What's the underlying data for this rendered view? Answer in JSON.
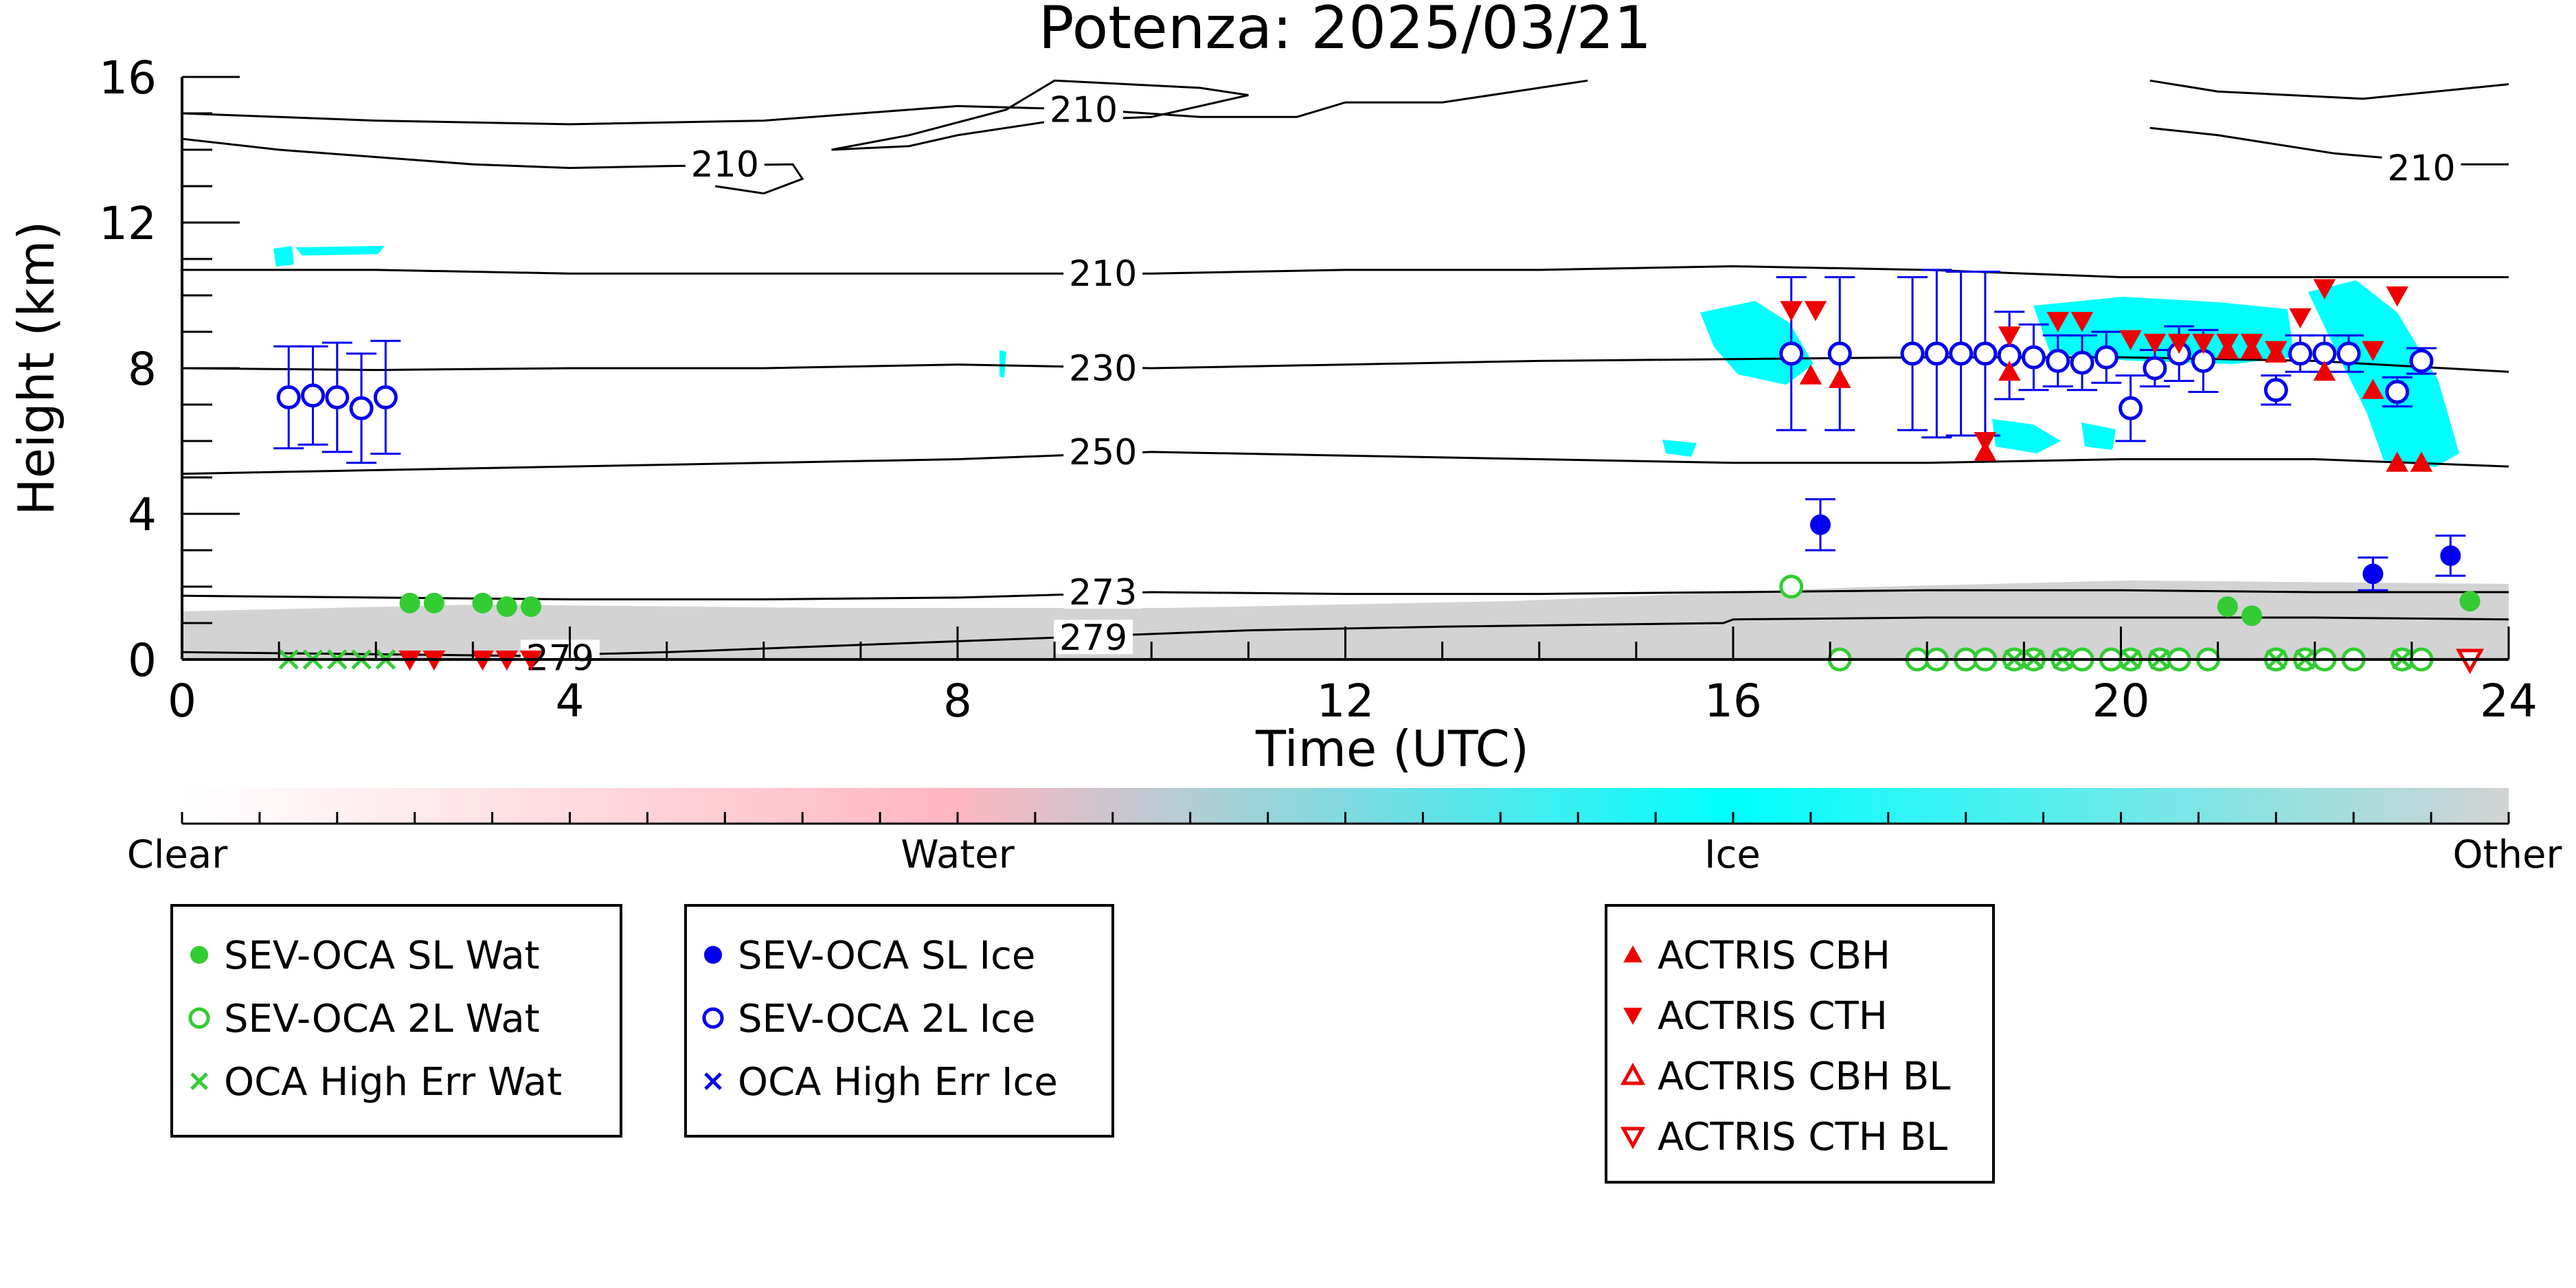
{
  "chart_data": {
    "type": "scatter",
    "title": "Potenza: 2025/03/21",
    "xlabel": "Time (UTC)",
    "ylabel": "Height (km)",
    "xlim": [
      0,
      24
    ],
    "ylim": [
      0,
      16
    ],
    "xticks": [
      "0",
      "4",
      "8",
      "12",
      "16",
      "20",
      "24"
    ],
    "yticks": [
      "0",
      "4",
      "8",
      "12",
      "16"
    ],
    "grid": false,
    "colorbar": {
      "labels": [
        "Clear",
        "Water",
        "Ice",
        "Other"
      ],
      "colors": [
        "#ffffff",
        "#ffb6c1",
        "#00ffff",
        "#d3d3d3"
      ]
    },
    "isotherm_labels": [
      {
        "text": "210",
        "x": 9.3,
        "y": 15.1
      },
      {
        "text": "210",
        "x": 5.6,
        "y": 13.6
      },
      {
        "text": "210",
        "x": 23.1,
        "y": 13.5
      },
      {
        "text": "210",
        "x": 9.5,
        "y": 10.6
      },
      {
        "text": "230",
        "x": 9.5,
        "y": 8.0
      },
      {
        "text": "250",
        "x": 9.5,
        "y": 5.7
      },
      {
        "text": "273",
        "x": 9.5,
        "y": 1.85
      },
      {
        "text": "279",
        "x": 9.4,
        "y": 0.6
      },
      {
        "text": "279",
        "x": 3.9,
        "y": 0.05
      }
    ],
    "contours": [
      {
        "name": "top-line",
        "points": [
          [
            0,
            15.0
          ],
          [
            1,
            14.9
          ],
          [
            2,
            14.8
          ],
          [
            4,
            14.7
          ],
          [
            6,
            14.8
          ],
          [
            8,
            15.2
          ],
          [
            9.4,
            15.1
          ],
          [
            10.5,
            14.9
          ],
          [
            11.5,
            14.9
          ],
          [
            12,
            15.3
          ],
          [
            13,
            15.3
          ],
          [
            14,
            15.7
          ],
          [
            14.5,
            15.9
          ]
        ]
      },
      {
        "name": "second-line",
        "points": [
          [
            0,
            14.3
          ],
          [
            1,
            14.0
          ],
          [
            2,
            13.8
          ],
          [
            3,
            13.6
          ],
          [
            4,
            13.5
          ],
          [
            5,
            13.55
          ],
          [
            6.3,
            13.6
          ],
          [
            6.4,
            13.2
          ],
          [
            6,
            12.8
          ],
          [
            5.5,
            13.0
          ]
        ]
      },
      {
        "name": "closed-loop",
        "points": [
          [
            6.7,
            14.0
          ],
          [
            7.5,
            14.4
          ],
          [
            8.5,
            15.1
          ],
          [
            9.0,
            15.9
          ],
          [
            10.5,
            15.7
          ],
          [
            11,
            15.5
          ],
          [
            10,
            14.9
          ],
          [
            9,
            14.8
          ],
          [
            8,
            14.4
          ],
          [
            7.5,
            14.1
          ],
          [
            6.7,
            14.0
          ]
        ]
      },
      {
        "name": "right-top",
        "points": [
          [
            20.3,
            15.9
          ],
          [
            21,
            15.6
          ],
          [
            22.5,
            15.4
          ],
          [
            24,
            15.8
          ]
        ]
      },
      {
        "name": "right-second",
        "points": [
          [
            20.3,
            14.6
          ],
          [
            21,
            14.4
          ],
          [
            22.2,
            13.9
          ],
          [
            23.5,
            13.6
          ],
          [
            24,
            13.6
          ]
        ]
      },
      {
        "name": "iso-210",
        "points": [
          [
            0,
            10.7
          ],
          [
            2,
            10.7
          ],
          [
            4,
            10.6
          ],
          [
            6,
            10.6
          ],
          [
            8,
            10.6
          ],
          [
            10,
            10.6
          ],
          [
            12,
            10.7
          ],
          [
            14,
            10.7
          ],
          [
            16,
            10.8
          ],
          [
            18,
            10.7
          ],
          [
            20,
            10.5
          ],
          [
            22,
            10.5
          ],
          [
            24,
            10.5
          ]
        ]
      },
      {
        "name": "iso-230",
        "points": [
          [
            0,
            8.0
          ],
          [
            2,
            7.95
          ],
          [
            4,
            8.0
          ],
          [
            6,
            8.0
          ],
          [
            8,
            8.1
          ],
          [
            10,
            8.0
          ],
          [
            12,
            8.1
          ],
          [
            14,
            8.2
          ],
          [
            16,
            8.25
          ],
          [
            18,
            8.3
          ],
          [
            20,
            8.3
          ],
          [
            22,
            8.2
          ],
          [
            24,
            7.9
          ]
        ]
      },
      {
        "name": "iso-250",
        "points": [
          [
            0,
            5.1
          ],
          [
            2,
            5.2
          ],
          [
            4,
            5.3
          ],
          [
            6,
            5.4
          ],
          [
            8,
            5.5
          ],
          [
            10,
            5.7
          ],
          [
            12,
            5.6
          ],
          [
            14,
            5.5
          ],
          [
            16,
            5.4
          ],
          [
            18,
            5.4
          ],
          [
            20,
            5.5
          ],
          [
            22,
            5.5
          ],
          [
            24,
            5.3
          ]
        ]
      },
      {
        "name": "iso-273",
        "points": [
          [
            0,
            1.75
          ],
          [
            2,
            1.7
          ],
          [
            4,
            1.65
          ],
          [
            6,
            1.65
          ],
          [
            8,
            1.7
          ],
          [
            10,
            1.85
          ],
          [
            12,
            1.8
          ],
          [
            14,
            1.8
          ],
          [
            16,
            1.85
          ],
          [
            18,
            1.9
          ],
          [
            20,
            1.9
          ],
          [
            22,
            1.85
          ],
          [
            24,
            1.85
          ]
        ]
      },
      {
        "name": "iso-279",
        "points": [
          [
            0,
            0.2
          ],
          [
            3.5,
            0.1
          ],
          [
            5,
            0.2
          ],
          [
            7,
            0.4
          ],
          [
            9,
            0.6
          ],
          [
            11,
            0.8
          ],
          [
            13,
            0.9
          ],
          [
            15.9,
            1.0
          ],
          [
            16,
            1.1
          ],
          [
            18,
            1.15
          ],
          [
            20,
            1.15
          ],
          [
            22,
            1.15
          ],
          [
            24,
            1.1
          ]
        ]
      }
    ],
    "series": [
      {
        "name": "SEV-OCA SL Wat",
        "color": "#33cc33",
        "marker": "filled-circle",
        "points": [
          [
            2.35,
            1.55
          ],
          [
            2.6,
            1.55
          ],
          [
            3.1,
            1.55
          ],
          [
            3.35,
            1.45
          ],
          [
            3.6,
            1.45
          ],
          [
            21.1,
            1.45
          ],
          [
            21.35,
            1.2
          ],
          [
            23.6,
            1.6
          ]
        ]
      },
      {
        "name": "SEV-OCA 2L Wat",
        "color": "#33cc33",
        "marker": "open-circle",
        "points": [
          [
            16.6,
            2.0
          ],
          [
            17.1,
            0.0
          ],
          [
            17.9,
            0.0
          ],
          [
            18.1,
            0.0
          ],
          [
            18.4,
            0.0
          ],
          [
            18.6,
            0.0
          ],
          [
            18.9,
            0.0
          ],
          [
            19.1,
            0.0
          ],
          [
            19.4,
            0.0
          ],
          [
            19.6,
            0.0
          ],
          [
            19.9,
            0.0
          ],
          [
            20.1,
            0.0
          ],
          [
            20.4,
            0.0
          ],
          [
            20.6,
            0.0
          ],
          [
            20.9,
            0.0
          ],
          [
            21.6,
            0.0
          ],
          [
            21.9,
            0.0
          ],
          [
            22.1,
            0.0
          ],
          [
            22.4,
            0.0
          ],
          [
            22.9,
            0.0
          ],
          [
            23.1,
            0.0
          ]
        ]
      },
      {
        "name": "OCA High Err Wat",
        "color": "#33cc33",
        "marker": "x",
        "points": [
          [
            1.1,
            0.0
          ],
          [
            1.35,
            0.0
          ],
          [
            1.6,
            0.0
          ],
          [
            1.85,
            0.0
          ],
          [
            2.1,
            0.0
          ],
          [
            18.9,
            0.0
          ],
          [
            19.1,
            0.0
          ],
          [
            19.4,
            0.0
          ],
          [
            20.1,
            0.0
          ],
          [
            20.4,
            0.0
          ],
          [
            21.6,
            0.0
          ],
          [
            21.9,
            0.0
          ],
          [
            22.9,
            0.0
          ]
        ]
      },
      {
        "name": "SEV-OCA SL Ice",
        "color": "#0000ee",
        "marker": "filled-circle",
        "points": [
          [
            16.9,
            3.7,
            0.7
          ],
          [
            22.6,
            2.35,
            0.45
          ],
          [
            23.4,
            2.85,
            0.55
          ]
        ]
      },
      {
        "name": "SEV-OCA 2L Ice",
        "color": "#0000ee",
        "marker": "open-circle",
        "points": [
          [
            1.1,
            7.2,
            1.4
          ],
          [
            1.35,
            7.25,
            1.35
          ],
          [
            1.6,
            7.2,
            1.5
          ],
          [
            1.85,
            6.9,
            1.5
          ],
          [
            2.1,
            7.2,
            1.55
          ],
          [
            16.6,
            8.4,
            2.1
          ],
          [
            17.1,
            8.4,
            2.1
          ],
          [
            17.85,
            8.4,
            2.1
          ],
          [
            18.1,
            8.4,
            2.3
          ],
          [
            18.35,
            8.4,
            2.25
          ],
          [
            18.6,
            8.4,
            2.25
          ],
          [
            18.85,
            8.35,
            1.2
          ],
          [
            19.1,
            8.3,
            0.9
          ],
          [
            19.35,
            8.2,
            0.7
          ],
          [
            19.6,
            8.15,
            0.75
          ],
          [
            19.85,
            8.3,
            0.7
          ],
          [
            20.1,
            6.9,
            0.9
          ],
          [
            20.35,
            8.0,
            0.5
          ],
          [
            20.6,
            8.4,
            0.75
          ],
          [
            20.85,
            8.2,
            0.85
          ],
          [
            21.6,
            7.4,
            0.4
          ],
          [
            21.85,
            8.4,
            0.5
          ],
          [
            22.1,
            8.4,
            0.5
          ],
          [
            22.35,
            8.4,
            0.5
          ],
          [
            22.85,
            7.35,
            0.4
          ],
          [
            23.1,
            8.2,
            0.35
          ]
        ]
      },
      {
        "name": "OCA High Err Ice",
        "color": "#0000ee",
        "marker": "x",
        "points": []
      },
      {
        "name": "ACTRIS CBH",
        "color": "#ee0000",
        "marker": "triangle-up",
        "points": [
          [
            16.8,
            7.8
          ],
          [
            17.1,
            7.7
          ],
          [
            18.6,
            5.7
          ],
          [
            18.85,
            7.9
          ],
          [
            21.1,
            8.5
          ],
          [
            21.35,
            8.5
          ],
          [
            21.6,
            8.4
          ],
          [
            22.1,
            7.9
          ],
          [
            22.6,
            7.4
          ],
          [
            22.85,
            5.4
          ],
          [
            23.1,
            5.4
          ]
        ]
      },
      {
        "name": "ACTRIS CTH",
        "color": "#ee0000",
        "marker": "triangle-down",
        "points": [
          [
            16.6,
            9.6
          ],
          [
            16.85,
            9.6
          ],
          [
            18.6,
            6.0
          ],
          [
            18.85,
            8.9
          ],
          [
            19.35,
            9.3
          ],
          [
            19.6,
            9.3
          ],
          [
            20.1,
            8.8
          ],
          [
            20.35,
            8.7
          ],
          [
            20.6,
            8.7
          ],
          [
            20.85,
            8.7
          ],
          [
            21.1,
            8.7
          ],
          [
            21.35,
            8.7
          ],
          [
            21.6,
            8.5
          ],
          [
            21.85,
            9.4
          ],
          [
            22.1,
            10.2
          ],
          [
            22.6,
            8.5
          ],
          [
            22.85,
            10.0
          ],
          [
            2.35,
            0.0
          ],
          [
            2.6,
            0.0
          ],
          [
            3.1,
            0.0
          ],
          [
            3.35,
            0.0
          ],
          [
            3.6,
            0.0
          ]
        ]
      },
      {
        "name": "ACTRIS CBH BL",
        "color": "#ee0000",
        "marker": "open-triangle-up",
        "points": []
      },
      {
        "name": "ACTRIS CTH BL",
        "color": "#ee0000",
        "marker": "open-triangle-down",
        "points": [
          [
            23.6,
            0.0
          ]
        ]
      }
    ],
    "legend": [
      [
        "SEV-OCA SL Wat",
        "SEV-OCA 2L Wat",
        "OCA High Err Wat"
      ],
      [
        "SEV-OCA SL Ice",
        "SEV-OCA 2L Ice",
        "OCA High Err Ice"
      ],
      [
        "ACTRIS CBH",
        "ACTRIS CTH",
        "ACTRIS CBH BL",
        "ACTRIS CTH BL"
      ]
    ]
  }
}
